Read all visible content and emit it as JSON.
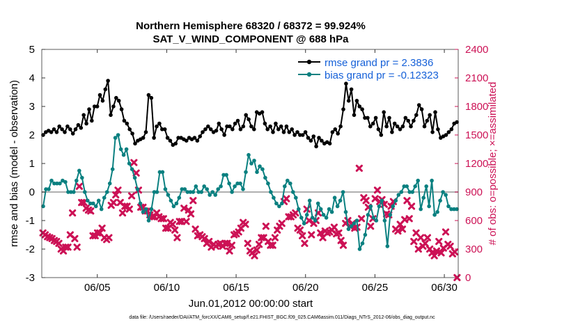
{
  "chart_data": {
    "type": "line",
    "title_line1": "Northern Hemisphere 68320 / 68372 = 99.924%",
    "title_line2": "SAT_V_WIND_COMPONENT @ 688 hPa",
    "xlabel": "Jun.01,2012 00:00:00 start",
    "ylabel_left": "rmse and bias (model - observation)",
    "ylabel_right": "# of obs: o=possible; ×=assimilated",
    "footnote": "data file: /Users/raeder/DAI/ATM_forcXX/CAM6_setup/f.e21.FHIST_BGC.f09_025.CAM6assim.011/Diags_NTrS_2012-06/obs_diag_output.nc",
    "x_range": [
      1,
      31
    ],
    "x_ticks": [
      5,
      10,
      15,
      20,
      25,
      30
    ],
    "x_tick_labels": [
      "06/05",
      "06/10",
      "06/15",
      "06/20",
      "06/25",
      "06/30"
    ],
    "y_left_range": [
      -3,
      5
    ],
    "y_left_ticks": [
      -3,
      -2,
      -1,
      0,
      1,
      2,
      3,
      4,
      5
    ],
    "y_right_range": [
      0,
      2400
    ],
    "y_right_ticks": [
      0,
      300,
      600,
      900,
      1200,
      1500,
      1800,
      2100,
      2400
    ],
    "colors": {
      "rmse": "#000000",
      "bias": "#0a8080",
      "obs": "#cc1155",
      "zero_line": "#b0b0b0",
      "legend_text": "#1560d8"
    },
    "series": [
      {
        "name": "rmse grand pr = 2.3836",
        "values": [
          2.0,
          2.1,
          2.15,
          2.1,
          2.2,
          2.1,
          2.3,
          2.2,
          2.1,
          2.3,
          2.2,
          2.05,
          2.2,
          2.35,
          2.25,
          2.7,
          2.4,
          2.9,
          2.5,
          3.0,
          3.0,
          3.4,
          3.2,
          3.6,
          3.9,
          2.7,
          3.0,
          3.3,
          3.2,
          2.9,
          2.5,
          2.4,
          2.2,
          2.05,
          1.7,
          1.8,
          1.85,
          1.9,
          2.1,
          3.4,
          3.3,
          1.9,
          2.3,
          2.4,
          2.2,
          2.2,
          1.9,
          1.8,
          1.65,
          1.7,
          1.9,
          1.9,
          1.85,
          1.8,
          1.9,
          1.85,
          1.9,
          1.8,
          1.95,
          2.1,
          2.2,
          2.3,
          2.2,
          2.1,
          2.15,
          2.4,
          2.2,
          2.0,
          2.3,
          2.3,
          2.2,
          2.4,
          2.5,
          2.2,
          2.3,
          2.7,
          2.55,
          2.3,
          2.2,
          2.8,
          2.75,
          2.8,
          2.4,
          2.2,
          2.3,
          2.1,
          2.4,
          2.2,
          2.3,
          2.1,
          2.3,
          2.1,
          2.2,
          2.0,
          2.1,
          2.0,
          2.0,
          2.1,
          1.9,
          1.8,
          1.95,
          1.6,
          1.9,
          1.8,
          1.7,
          1.75,
          1.7,
          2.1,
          2.2,
          2.05,
          2.3,
          2.9,
          3.8,
          3.2,
          3.6,
          2.7,
          3.2,
          3.0,
          2.9,
          2.6,
          2.6,
          2.3,
          2.4,
          2.6,
          2.2,
          2.0,
          2.8,
          2.3,
          2.6,
          2.1,
          2.4,
          2.3,
          2.2,
          2.3,
          2.6,
          2.5,
          2.3,
          2.5,
          2.7,
          3.05,
          2.9,
          2.3,
          2.5,
          2.7,
          2.1,
          2.8,
          2.2,
          1.9,
          1.95,
          2.0,
          2.1,
          2.2,
          2.4,
          2.45
        ]
      },
      {
        "name": "bias grand pr = -0.12323",
        "values": [
          -0.5,
          0.1,
          0.1,
          0.4,
          0.3,
          0.3,
          0.3,
          0.4,
          0.35,
          0.0,
          0.0,
          0.0,
          0.4,
          0.75,
          0.5,
          0.0,
          -0.3,
          -0.4,
          -0.4,
          -0.5,
          -0.3,
          -0.6,
          -0.2,
          0.0,
          0.3,
          0.8,
          1.9,
          2.0,
          1.5,
          1.3,
          1.5,
          1.0,
          0.8,
          0.5,
          0.1,
          -0.4,
          -0.7,
          -0.6,
          -1.0,
          -0.6,
          0.0,
          0.0,
          0.7,
          0.7,
          0.1,
          -0.1,
          -0.3,
          -0.5,
          -0.4,
          -0.2,
          0.1,
          0.1,
          0.0,
          0.0,
          0.0,
          0.2,
          0.0,
          0.0,
          0.2,
          0.1,
          -0.1,
          0.0,
          -0.1,
          0.1,
          0.2,
          0.6,
          0.6,
          0.3,
          0.0,
          0.2,
          0.3,
          0.3,
          0.1,
          0.7,
          1.3,
          1.0,
          1.1,
          0.7,
          0.9,
          0.8,
          0.5,
          0.3,
          0.0,
          -0.2,
          -0.4,
          -0.5,
          -0.4,
          0.2,
          0.4,
          0.3,
          0.0,
          -0.2,
          -0.6,
          -0.9,
          -1.1,
          -0.8,
          -0.3,
          -0.9,
          -1.0,
          -0.4,
          -0.6,
          -0.8,
          -0.9,
          -0.6,
          -0.7,
          -0.2,
          -0.5,
          -0.3,
          0.0,
          -0.7,
          -1.3,
          -1.2,
          -1.1,
          -1.0,
          -2.0,
          -1.8,
          -1.5,
          -0.8,
          -0.5,
          -0.9,
          -1.0,
          -0.5,
          -0.3,
          -1.0,
          -1.9,
          -0.8,
          -0.5,
          -0.3,
          -0.1,
          0.0,
          0.2,
          0.2,
          0.0,
          0.0,
          0.2,
          0.4,
          -0.6,
          -0.2,
          0.2,
          -0.5,
          0.4,
          -0.8,
          -0.7,
          -0.3,
          0.0,
          -0.1,
          -0.5,
          -0.6,
          -0.6,
          -0.6
        ]
      }
    ],
    "obs_assimilated": [
      470,
      450,
      430,
      420,
      410,
      390,
      380,
      360,
      300,
      280,
      320,
      320,
      450,
      680,
      410,
      320,
      960,
      790,
      790,
      730,
      710,
      700,
      440,
      440,
      470,
      470,
      520,
      420,
      400,
      420,
      760,
      790,
      870,
      920,
      790,
      680,
      750,
      750,
      720,
      860,
      1210,
      1100,
      920,
      740,
      740,
      700,
      700,
      660,
      640,
      640,
      680,
      640,
      620,
      620,
      520,
      520,
      580,
      560,
      500,
      420,
      590,
      590,
      730,
      590,
      710,
      670,
      810,
      510,
      440,
      450,
      430,
      410,
      360,
      380,
      320,
      350,
      330,
      350,
      360,
      330,
      360,
      360,
      280,
      340,
      450,
      460,
      480,
      520,
      580,
      560,
      360,
      280,
      260,
      230,
      290,
      350,
      420,
      420,
      540,
      380,
      340,
      340,
      420,
      500,
      540,
      570,
      800,
      830,
      640,
      640,
      660,
      680,
      520,
      500,
      440,
      360,
      720,
      600,
      450,
      570,
      600,
      680,
      470,
      420,
      490,
      470,
      480,
      500,
      530,
      460,
      470,
      390,
      340,
      570,
      600,
      540,
      570,
      520,
      530,
      1150,
      620,
      840,
      810,
      740,
      540,
      620,
      830,
      920,
      800,
      820,
      770,
      670,
      660,
      750,
      800,
      510,
      490,
      560,
      510,
      610,
      810,
      620,
      750,
      380,
      470,
      300,
      420,
      330,
      360,
      420,
      300,
      260,
      230,
      280,
      380,
      260,
      310,
      480,
      350,
      330,
      250,
      270,
      0
    ]
  },
  "legend_position": "top-right"
}
